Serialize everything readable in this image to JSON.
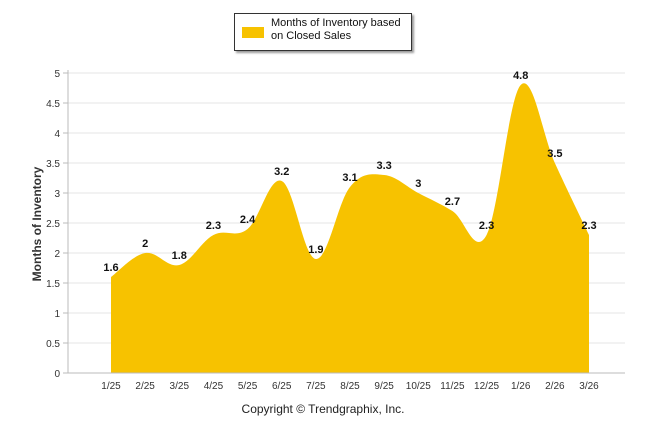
{
  "chart_data": {
    "type": "area",
    "categories": [
      "1/25",
      "2/25",
      "3/25",
      "4/25",
      "5/25",
      "6/25",
      "7/25",
      "8/25",
      "9/25",
      "10/25",
      "11/25",
      "12/25",
      "1/26",
      "2/26",
      "3/26"
    ],
    "series": [
      {
        "name": "Months of Inventory based on Closed Sales",
        "values": [
          1.6,
          2,
          1.8,
          2.3,
          2.4,
          3.2,
          1.9,
          3.1,
          3.3,
          3,
          2.7,
          2.3,
          4.8,
          3.5,
          2.3
        ],
        "labels": [
          "1.6",
          "2",
          "1.8",
          "2.3",
          "2.4",
          "3.2",
          "1.9",
          "3.1",
          "3.3",
          "3",
          "2.7",
          "2.3",
          "4.8",
          "3.5",
          "2.3"
        ]
      }
    ],
    "yticks": [
      "0",
      "0.5",
      "1",
      "1.5",
      "2",
      "2.5",
      "3",
      "3.5",
      "4",
      "4.5",
      "5"
    ],
    "ylim": [
      0,
      5
    ],
    "ylabel": "Months of Inventory",
    "xlabel": "",
    "grid": true,
    "legend_position": "top-center",
    "colors": {
      "fill": "#F7C200",
      "grid": "#e6e6e6",
      "axis": "#bbbbbb"
    }
  },
  "legend": {
    "label": "Months of Inventory based on Closed Sales",
    "color": "#F7C200"
  },
  "footer": {
    "text": "Copyright © Trendgraphix, Inc."
  }
}
